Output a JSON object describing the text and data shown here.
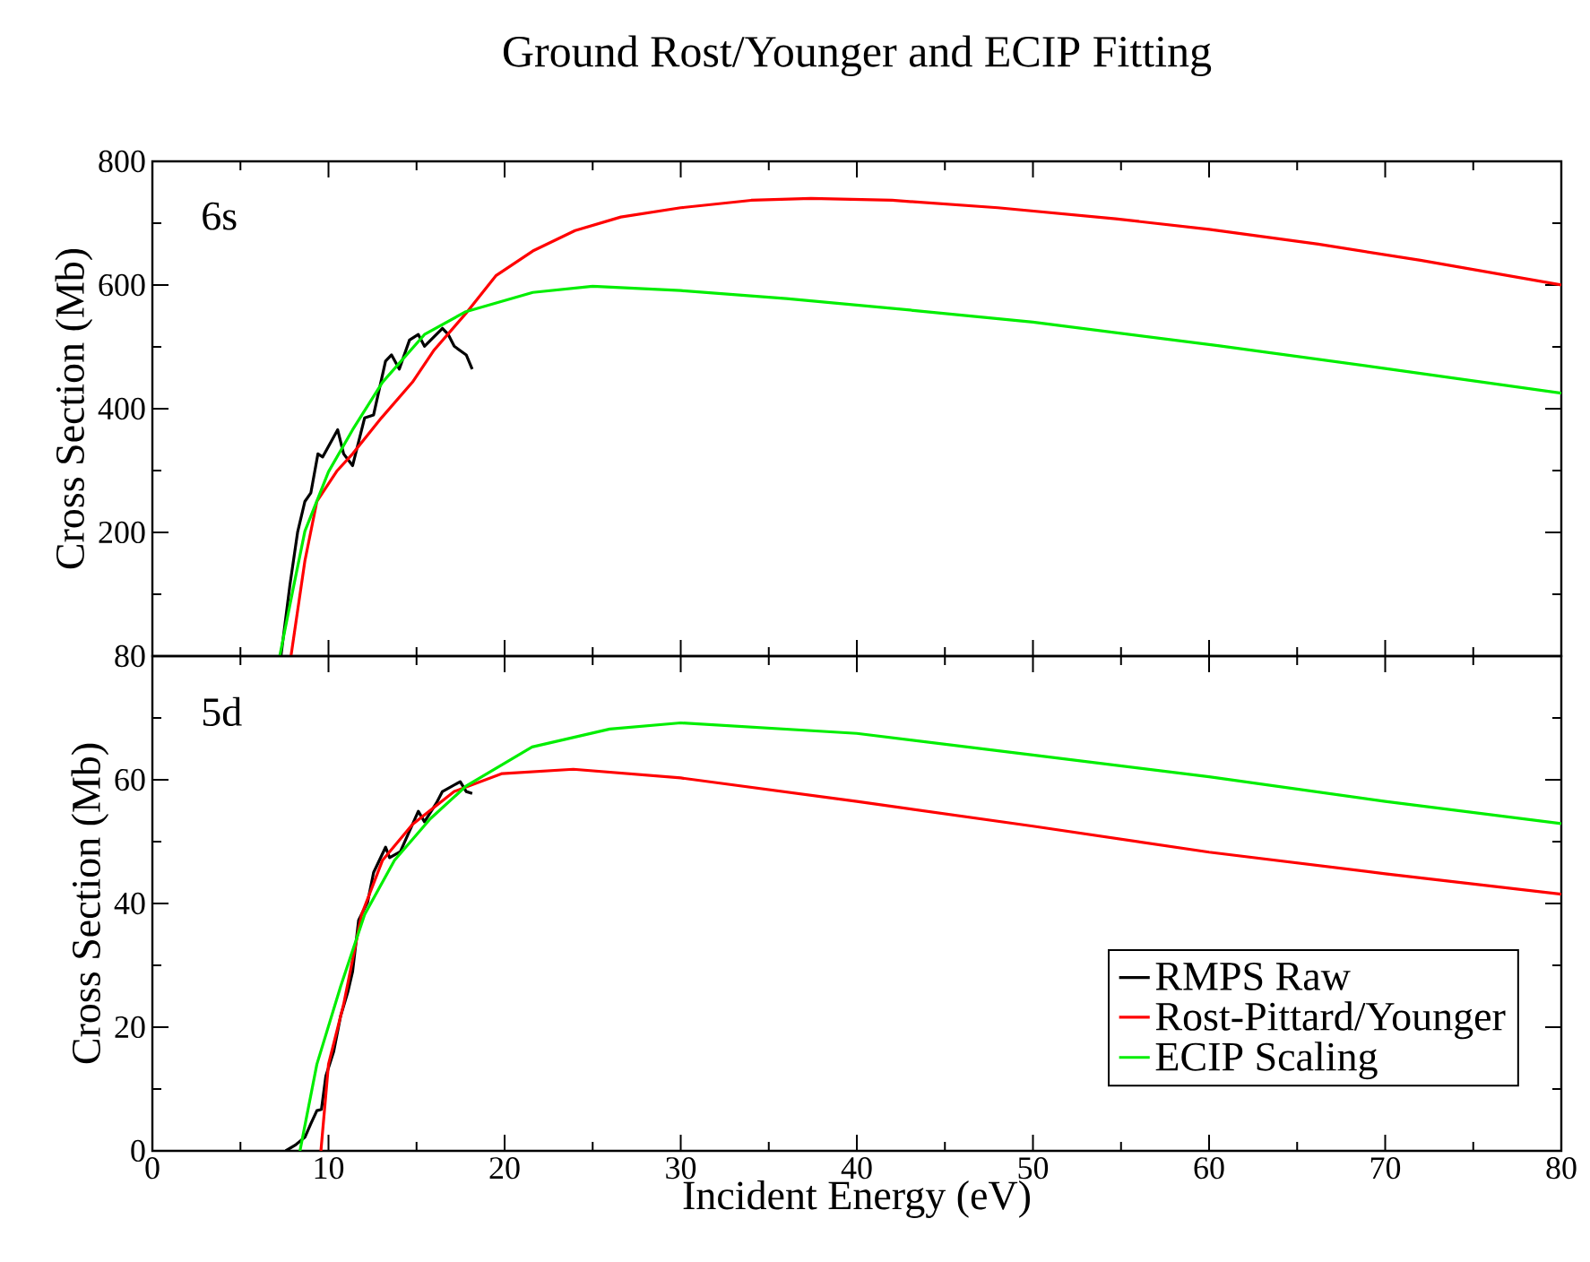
{
  "chart_data": [
    {
      "type": "line",
      "title": "Ground Rost/Younger and ECIP Fitting",
      "ylabel": "Cross Section (Mb)",
      "annotations": [
        "6s"
      ],
      "xlim": [
        0,
        80
      ],
      "xticks": [
        0,
        10,
        20,
        30,
        40,
        50,
        60,
        70,
        80
      ],
      "ylim": [
        0,
        800
      ],
      "yticks": [
        {
          "value": 0,
          "label": null
        },
        200,
        400,
        600,
        800
      ],
      "tick_labels": "y",
      "series": [
        {
          "color": "#000000",
          "x": [
            7.3,
            7.81,
            8.25,
            8.66,
            9.0,
            9.4,
            9.67,
            10.52,
            10.86,
            11.37,
            12.05,
            12.56,
            13.24,
            13.58,
            14.02,
            14.6,
            15.1,
            15.45,
            16.47,
            16.8,
            17.14,
            17.82,
            18.16
          ],
          "values": [
            0,
            115,
            201,
            250,
            264,
            327,
            322,
            366,
            327,
            308,
            385,
            390,
            477,
            487,
            464,
            511,
            520,
            501,
            530,
            520,
            501,
            487,
            464
          ]
        },
        {
          "color": "#ff0000",
          "x": [
            7.87,
            8.66,
            9.34,
            10.5,
            11.37,
            13,
            14.77,
            16,
            17.8,
            19.5,
            21.6,
            24,
            26.6,
            30,
            34,
            37.4,
            42,
            48,
            54.7,
            60,
            66.2,
            72,
            80
          ],
          "values": [
            0,
            154,
            250,
            300,
            327,
            385,
            443,
            495,
            554,
            615,
            655,
            688,
            710,
            725,
            737,
            740,
            737,
            725,
            707,
            690,
            666,
            640,
            600
          ]
        },
        {
          "color": "#00ee00",
          "x": [
            7.23,
            8.0,
            8.66,
            10,
            11.37,
            13.07,
            15.45,
            17.8,
            21.6,
            25,
            30,
            36,
            43.2,
            50,
            60.5,
            70,
            80
          ],
          "values": [
            0,
            110,
            202,
            298,
            366,
            443,
            520,
            557,
            588,
            598,
            591,
            578,
            559,
            540,
            502,
            465,
            425
          ]
        }
      ]
    },
    {
      "type": "line",
      "ylabel": "Cross Section (Mb)",
      "xlabel": "Incident Energy (eV)",
      "annotations": [
        "5d"
      ],
      "xlim": [
        0,
        80
      ],
      "xticks": [
        0,
        10,
        20,
        30,
        40,
        50,
        60,
        70,
        80
      ],
      "ylim": [
        0,
        80
      ],
      "yticks": [
        0,
        20,
        40,
        60,
        80
      ],
      "legend": "bottom right",
      "series": [
        {
          "name": "RMPS Raw",
          "color": "#000000",
          "x": [
            7.57,
            8.15,
            8.66,
            9.0,
            9.34,
            9.6,
            9.85,
            10.29,
            10.69,
            11.1,
            11.37,
            11.71,
            12.22,
            12.56,
            13.24,
            13.47,
            14.08,
            15.1,
            15.45,
            16.12,
            16.47,
            17.48,
            17.82,
            18.16
          ],
          "values": [
            0,
            1.0,
            2.2,
            4.4,
            6.5,
            6.7,
            12.1,
            16.0,
            21.8,
            25.7,
            29.0,
            37.3,
            40.2,
            45.0,
            49.1,
            47.4,
            48.4,
            54.9,
            53.2,
            56.2,
            58.1,
            59.7,
            58.1,
            57.8
          ]
        },
        {
          "name": "Rost-Pittard/Younger",
          "color": "#ff0000",
          "x": [
            9.57,
            10,
            10.86,
            11.88,
            13.07,
            14.77,
            17.14,
            19.86,
            23.9,
            30,
            40,
            50,
            60,
            70,
            80
          ],
          "values": [
            0,
            14,
            23.7,
            38.2,
            47,
            52.8,
            58.1,
            61,
            61.7,
            60.3,
            56.5,
            52.5,
            48.3,
            44.8,
            41.5
          ]
        },
        {
          "name": "ECIP Scaling",
          "color": "#00ee00",
          "x": [
            8.38,
            9.34,
            10.69,
            12.05,
            13.75,
            15.78,
            17.82,
            21.56,
            25.97,
            30,
            40,
            50,
            60,
            70,
            80
          ],
          "values": [
            0,
            14,
            26.6,
            38.2,
            47,
            53.7,
            59,
            65.3,
            68.2,
            69.2,
            67.5,
            64,
            60.5,
            56.5,
            52.9
          ]
        }
      ]
    }
  ]
}
